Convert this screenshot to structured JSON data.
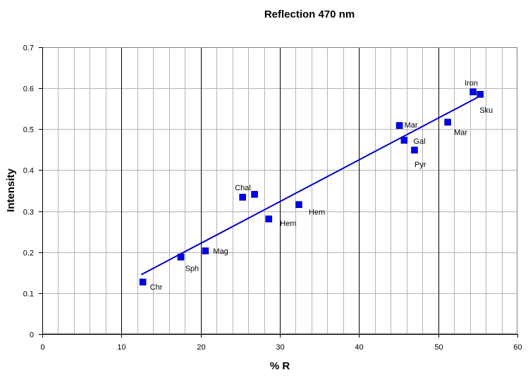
{
  "chart_data": {
    "type": "scatter",
    "title": "Reflection 470 nm",
    "xlabel": "% R",
    "ylabel": "Intensity",
    "xlim": [
      0,
      60
    ],
    "ylim": [
      0,
      0.7
    ],
    "x_ticks": [
      0,
      10,
      20,
      30,
      40,
      50,
      60
    ],
    "y_ticks": [
      0,
      0.1,
      0.2,
      0.3,
      0.4,
      0.5,
      0.6,
      0.7
    ],
    "x_ticks_text": [
      "0",
      "10",
      "20",
      "30",
      "40",
      "50",
      "60"
    ],
    "y_ticks_text": [
      "0",
      "0.1",
      "0.2",
      "0.3",
      "0.4",
      "0.5",
      "0.6",
      "0.7"
    ],
    "x_minor_step": 2,
    "grid": true,
    "marker_color": "#0000ee",
    "trendline_color": "#0000cc",
    "points": [
      {
        "label": "Chr",
        "x": 12.7,
        "y": 0.127
      },
      {
        "label": "Sph",
        "x": 17.5,
        "y": 0.188
      },
      {
        "label": "Mag",
        "x": 20.6,
        "y": 0.203
      },
      {
        "label": "Chal",
        "x": 25.3,
        "y": 0.334
      },
      {
        "label": "",
        "x": 26.8,
        "y": 0.341
      },
      {
        "label": "Hem",
        "x": 28.6,
        "y": 0.281
      },
      {
        "label": "Hem",
        "x": 32.4,
        "y": 0.316
      },
      {
        "label": "Mar",
        "x": 45.1,
        "y": 0.509
      },
      {
        "label": "Gal",
        "x": 45.7,
        "y": 0.473
      },
      {
        "label": "Pyr",
        "x": 47.0,
        "y": 0.449
      },
      {
        "label": "Mar",
        "x": 51.2,
        "y": 0.517
      },
      {
        "label": "Iron",
        "x": 54.4,
        "y": 0.591
      },
      {
        "label": "Sku",
        "x": 55.3,
        "y": 0.585
      }
    ],
    "trendline": {
      "x": [
        12.5,
        55.5
      ],
      "y": [
        0.145,
        0.583
      ]
    }
  }
}
